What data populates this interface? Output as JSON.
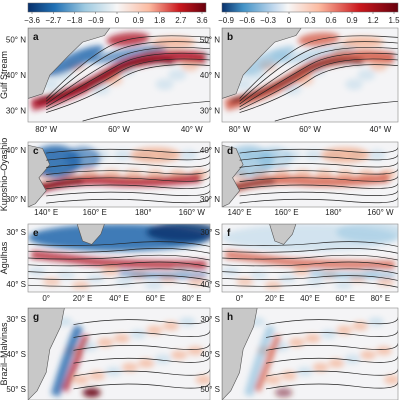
{
  "chart_data": {
    "type": "heatmap",
    "colorbars": [
      {
        "ticks": [
          "−3.6",
          "−2.7",
          "−1.8",
          "−0.9",
          "0",
          "0.9",
          "1.8",
          "2.7",
          "3.6"
        ],
        "range": [
          -3.6,
          3.6
        ],
        "colormap": "diverging-blue-red"
      },
      {
        "ticks": [
          "−0.9",
          "−0.6",
          "−0.3",
          "0",
          "0.3",
          "0.6",
          "0.9",
          "1.2",
          "1.5"
        ],
        "range": [
          -0.9,
          1.5
        ],
        "colormap": "diverging-blue-red"
      }
    ],
    "rows": [
      {
        "name": "Gulf Stream",
        "lon_ticks": [
          "80° W",
          "60° W",
          "40° W"
        ],
        "lat_ticks": [
          "50° N",
          "40° N",
          "30° N"
        ],
        "panels": [
          {
            "label": "a",
            "colorbar": 0,
            "pattern": "gulf"
          },
          {
            "label": "b",
            "colorbar": 1,
            "pattern": "gulf"
          }
        ]
      },
      {
        "name": "Kuroshio–Oyashio",
        "lon_ticks": [
          "140° E",
          "160° E",
          "180°",
          "160° W"
        ],
        "lat_ticks": [
          "40° N",
          "30° N"
        ],
        "panels": [
          {
            "label": "c",
            "colorbar": 0,
            "pattern": "kuroshio"
          },
          {
            "label": "d",
            "colorbar": 1,
            "pattern": "kuroshio"
          }
        ]
      },
      {
        "name": "Agulhas",
        "lon_ticks": [
          "0°",
          "20° E",
          "40° E",
          "60° E",
          "80° E"
        ],
        "lat_ticks": [
          "30° S",
          "40° S"
        ],
        "panels": [
          {
            "label": "e",
            "colorbar": 0,
            "pattern": "agulhas"
          },
          {
            "label": "f",
            "colorbar": 1,
            "pattern": "agulhas"
          }
        ]
      },
      {
        "name": "Brazil–Malvinas",
        "lon_ticks": [],
        "lat_ticks": [
          "30° S",
          "40° S",
          "50° S"
        ],
        "panels": [
          {
            "label": "g",
            "colorbar": 0,
            "pattern": "brazil"
          },
          {
            "label": "h",
            "colorbar": 1,
            "pattern": "brazil"
          }
        ]
      }
    ],
    "colors": {
      "land": "#c8c8c8",
      "contour": "#222222",
      "ocean_bg": "#f4f4f6"
    }
  }
}
